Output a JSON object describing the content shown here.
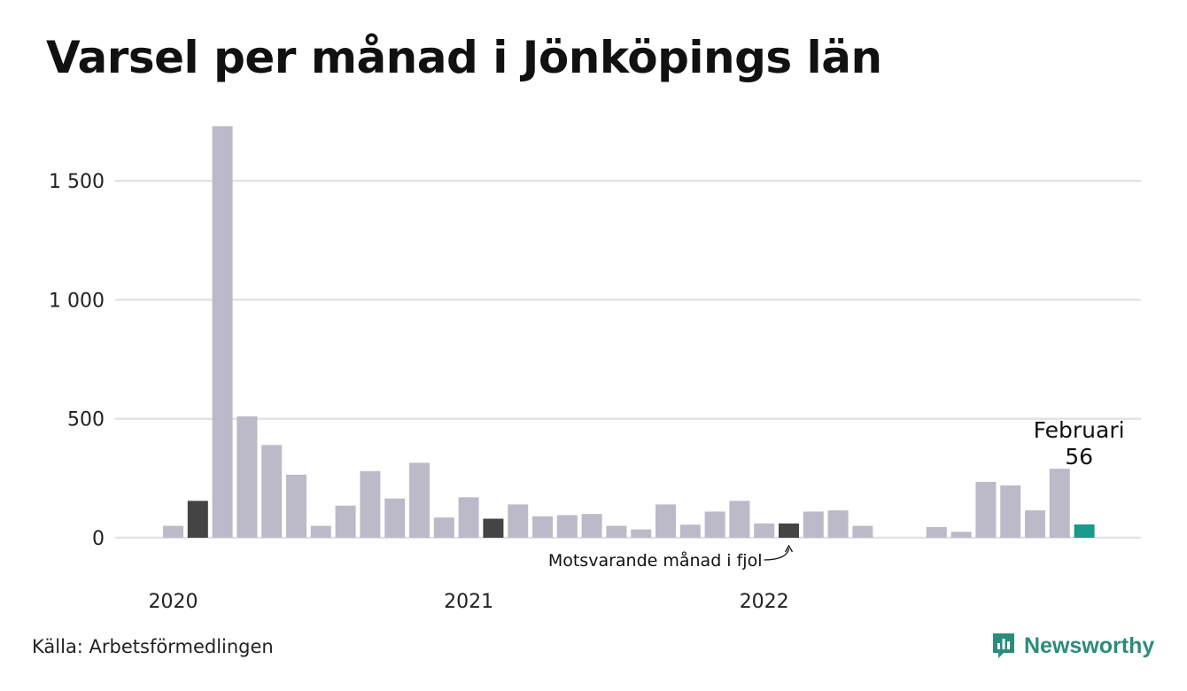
{
  "title": "Varsel per månad i Jönköpings län",
  "source": "Källa: Arbetsförmedlingen",
  "brand": {
    "name": "Newsworthy",
    "icon": "newsworthy-logo-icon",
    "color": "#2b8c7c"
  },
  "colors": {
    "bar": "#bcbac8",
    "previous_year": "#444444",
    "current": "#1a9a8a",
    "grid": "#e3e3e6"
  },
  "chart_data": {
    "type": "bar",
    "title": "Varsel per månad i Jönköpings län",
    "xlabel": "",
    "ylabel": "",
    "ylim": [
      0,
      1750
    ],
    "yticks": [
      0,
      500,
      1000,
      1500
    ],
    "ytick_labels": [
      "0",
      "500",
      "1 000",
      "1 500"
    ],
    "grid": true,
    "year_labels": [
      {
        "label": "2020",
        "month_index": 0
      },
      {
        "label": "2021",
        "month_index": 12
      },
      {
        "label": "2022",
        "month_index": 24
      }
    ],
    "months": [
      "2020-01",
      "2020-02",
      "2020-03",
      "2020-04",
      "2020-05",
      "2020-06",
      "2020-07",
      "2020-08",
      "2020-09",
      "2020-10",
      "2020-11",
      "2020-12",
      "2021-01",
      "2021-02",
      "2021-03",
      "2021-04",
      "2021-05",
      "2021-06",
      "2021-07",
      "2021-08",
      "2021-09",
      "2021-10",
      "2021-11",
      "2021-12",
      "2022-01",
      "2022-02",
      "2022-03",
      "2022-04",
      "2022-05",
      "2022-06",
      "2022-07",
      "2022-08",
      "2022-09",
      "2022-10",
      "2022-11",
      "2022-12",
      "2023-01",
      "2023-02"
    ],
    "values": [
      50,
      155,
      1730,
      510,
      390,
      265,
      50,
      135,
      280,
      165,
      315,
      85,
      170,
      80,
      140,
      90,
      95,
      100,
      50,
      35,
      140,
      55,
      110,
      155,
      60,
      60,
      110,
      115,
      50,
      0,
      0,
      45,
      25,
      235,
      220,
      115,
      290,
      56
    ],
    "previous_year_indices": [
      1,
      13,
      25
    ],
    "highlight": {
      "index": 37,
      "label": "Februari",
      "value_label": "56"
    },
    "annotation": {
      "text": "Motsvarande månad i fjol",
      "index": 25
    }
  }
}
